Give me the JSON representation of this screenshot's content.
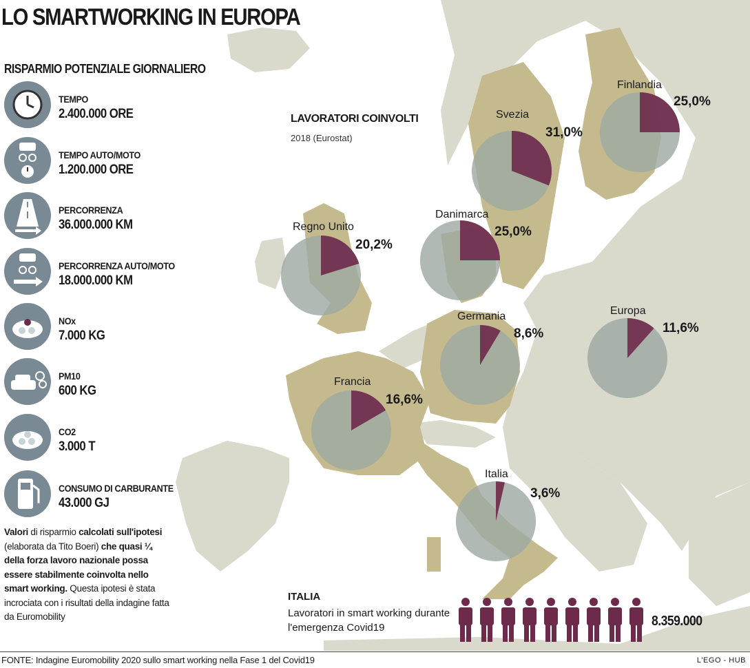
{
  "title": "LO SMARTWORKING IN EUROPA",
  "savings": {
    "heading": "RISPARMIO POTENZIALE GIORNALIERO",
    "items": [
      {
        "icon": "clock-icon",
        "label": "TEMPO",
        "value": "2.400.000 ORE"
      },
      {
        "icon": "car-moto-clock-icon",
        "label": "TEMPO AUTO/MOTO",
        "value": "1.200.000 ORE"
      },
      {
        "icon": "road-icon",
        "label": "PERCORRENZA",
        "value": "36.000.000 KM"
      },
      {
        "icon": "car-moto-arrow-icon",
        "label": "PERCORRENZA AUTO/MOTO",
        "value": "18.000.000 KM"
      },
      {
        "icon": "nox-cloud-icon",
        "label": "NOx",
        "value": "7.000 KG"
      },
      {
        "icon": "car-exhaust-icon",
        "label": "PM10",
        "value": "600 KG"
      },
      {
        "icon": "co2-cloud-icon",
        "label": "CO2",
        "value": "3.000 T"
      },
      {
        "icon": "fuel-pump-icon",
        "label": "CONSUMO DI CARBURANTE",
        "value": "43.000 GJ"
      }
    ]
  },
  "note": {
    "t1": "Valori",
    "t2": " di risparmio ",
    "t3": "calcolati sull'ipotesi",
    "t4": " (elaborata da Tito Boeri) ",
    "t5": "che quasi ¼ della forza lavoro nazionale possa essere stabilmente coinvolta nello smart working.",
    "t6": " Questa ipotesi è stata incrociata con i risultati della indagine fatta da Euromobility"
  },
  "map_section": {
    "heading": "LAVORATORI COINVOLTI",
    "subheading": "2018 (Eurostat)"
  },
  "chart_data": {
    "type": "pie",
    "unit": "%",
    "series": [
      {
        "name": "Finlandia",
        "value": 25.0,
        "label": "25,0%"
      },
      {
        "name": "Svezia",
        "value": 31.0,
        "label": "31,0%"
      },
      {
        "name": "Danimarca",
        "value": 25.0,
        "label": "25,0%"
      },
      {
        "name": "Regno Unito",
        "value": 20.2,
        "label": "20,2%"
      },
      {
        "name": "Germania",
        "value": 8.6,
        "label": "8,6%"
      },
      {
        "name": "Europa",
        "value": 11.6,
        "label": "11,6%"
      },
      {
        "name": "Francia",
        "value": 16.6,
        "label": "16,6%"
      },
      {
        "name": "Italia",
        "value": 3.6,
        "label": "3,6%"
      }
    ],
    "colors": {
      "slice": "#6e2a4a",
      "rest": "#9fa9a2"
    }
  },
  "italia": {
    "heading": "ITALIA",
    "text": "Lavoratori in smart working durante l'emergenza Covid19",
    "value": "8.359.000"
  },
  "colors": {
    "sea": "#ffffff",
    "land": "#d9d9cc",
    "highlight": "#c4ba8e",
    "accent": "#6e2a4a",
    "icon_bg": "#7a8a95"
  },
  "footer": {
    "source": "FONTE: Indagine Euromobility 2020 sullo smart working nella Fase 1 del Covid19",
    "brand": "L'EGO - HUB"
  }
}
